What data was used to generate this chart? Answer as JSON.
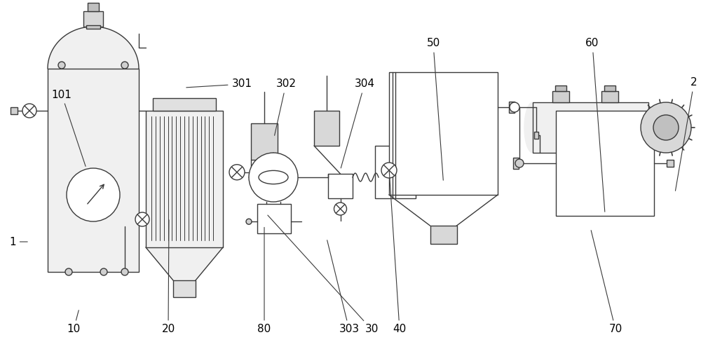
{
  "bg_color": "#ffffff",
  "line_color": "#3a3a3a",
  "lw": 1.0,
  "fig_width": 10.0,
  "fig_height": 5.08,
  "dpi": 100
}
